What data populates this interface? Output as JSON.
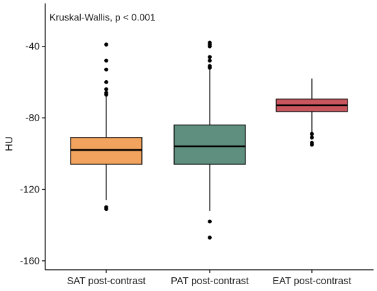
{
  "chart_data": {
    "type": "boxplot",
    "annotation": "Kruskal-Wallis, p < 0.001",
    "ylabel": "HU",
    "xlabel": "",
    "ylim": [
      -165,
      -16
    ],
    "yticks": [
      {
        "value": -40,
        "label": "-40"
      },
      {
        "value": -80,
        "label": "-80"
      },
      {
        "value": -120,
        "label": "-120"
      },
      {
        "value": -160,
        "label": "-160"
      }
    ],
    "grid": false,
    "legend": "none",
    "categories": [
      "SAT post-contrast",
      "PAT post-contrast",
      "EAT post-contrast"
    ],
    "series": [
      {
        "color": "#F2A45E",
        "q1": -106,
        "median": -98,
        "q3": -91,
        "whisker_low": -126,
        "whisker_high": -67,
        "outliers": [
          -39,
          -48,
          -53,
          -60,
          -64,
          -66,
          -67,
          -130,
          -131
        ]
      },
      {
        "color": "#5F8F7E",
        "q1": -106,
        "median": -96,
        "q3": -84,
        "whisker_low": -132,
        "whisker_high": -53,
        "outliers": [
          -38,
          -39,
          -40,
          -46,
          -48,
          -51,
          -52,
          -138,
          -147
        ]
      },
      {
        "color": "#C9565E",
        "q1": -76.5,
        "median": -73,
        "q3": -69.5,
        "whisker_low": -88,
        "whisker_high": -58,
        "outliers": [
          -89,
          -91,
          -94,
          -95
        ]
      }
    ]
  }
}
